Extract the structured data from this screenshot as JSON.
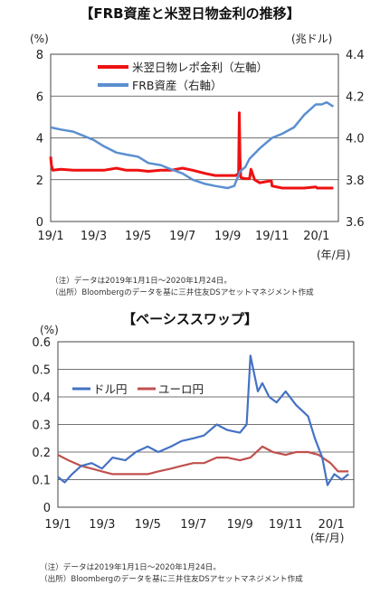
{
  "chart_data": [
    {
      "type": "line",
      "title": "【FRB資産と米翌日物金利の推移】",
      "left_unit": "(%)",
      "right_unit": "(兆ドル)",
      "x_unit": "(年/月)",
      "x_ticks": [
        "19/1",
        "19/3",
        "19/5",
        "19/7",
        "19/9",
        "19/11",
        "20/1"
      ],
      "y_left_ticks": [
        "0",
        "2",
        "4",
        "6",
        "8"
      ],
      "y_left_lim": [
        0,
        8
      ],
      "y_right_ticks": [
        "3.6",
        "3.8",
        "4.0",
        "4.2",
        "4.4"
      ],
      "y_right_lim": [
        3.6,
        4.4
      ],
      "grid": true,
      "legend_position": "top-left",
      "series": [
        {
          "name": "米翌日物レポ金利（左軸）",
          "axis": "left",
          "color": "#ee1111",
          "x": [
            "2019-01-01",
            "2019-01-02",
            "2019-01-04",
            "2019-01-15",
            "2019-02-01",
            "2019-02-15",
            "2019-03-01",
            "2019-03-15",
            "2019-04-01",
            "2019-04-15",
            "2019-05-01",
            "2019-05-15",
            "2019-06-01",
            "2019-06-15",
            "2019-07-01",
            "2019-07-15",
            "2019-08-01",
            "2019-08-15",
            "2019-09-01",
            "2019-09-12",
            "2019-09-16",
            "2019-09-17",
            "2019-09-18",
            "2019-09-19",
            "2019-09-25",
            "2019-10-01",
            "2019-10-03",
            "2019-10-08",
            "2019-10-15",
            "2019-10-31",
            "2019-11-01",
            "2019-11-15",
            "2019-12-01",
            "2019-12-15",
            "2019-12-31",
            "2020-01-02",
            "2020-01-15",
            "2020-01-24"
          ],
          "values": [
            3.1,
            2.7,
            2.45,
            2.5,
            2.45,
            2.45,
            2.45,
            2.45,
            2.55,
            2.45,
            2.45,
            2.4,
            2.45,
            2.45,
            2.55,
            2.45,
            2.3,
            2.2,
            2.2,
            2.2,
            2.3,
            5.2,
            3.0,
            2.1,
            2.05,
            2.05,
            2.5,
            2.0,
            1.85,
            1.95,
            1.7,
            1.6,
            1.6,
            1.6,
            1.65,
            1.6,
            1.6,
            1.6
          ]
        },
        {
          "name": "FRB資産（右軸）",
          "axis": "right",
          "color": "#5b8fd0",
          "x": [
            "2019-01-01",
            "2019-01-15",
            "2019-02-01",
            "2019-02-15",
            "2019-03-01",
            "2019-03-15",
            "2019-04-01",
            "2019-04-15",
            "2019-05-01",
            "2019-05-15",
            "2019-06-01",
            "2019-06-15",
            "2019-07-01",
            "2019-07-15",
            "2019-08-01",
            "2019-08-15",
            "2019-09-01",
            "2019-09-10",
            "2019-09-18",
            "2019-09-25",
            "2019-10-01",
            "2019-10-15",
            "2019-11-01",
            "2019-11-15",
            "2019-12-01",
            "2019-12-15",
            "2019-12-31",
            "2020-01-08",
            "2020-01-15",
            "2020-01-24"
          ],
          "values": [
            4.05,
            4.04,
            4.03,
            4.01,
            3.99,
            3.96,
            3.93,
            3.92,
            3.91,
            3.88,
            3.87,
            3.85,
            3.83,
            3.8,
            3.78,
            3.77,
            3.76,
            3.77,
            3.84,
            3.86,
            3.9,
            3.95,
            4.0,
            4.02,
            4.05,
            4.11,
            4.16,
            4.16,
            4.17,
            4.15
          ]
        }
      ],
      "notes": [
        "（注）データは2019年1月1日～2020年1月24日。",
        "（出所）Bloombergのデータを基に三井住友DSアセットマネジメント作成"
      ]
    },
    {
      "type": "line",
      "title": "【ベーシススワップ】",
      "y_unit": "(%)",
      "x_unit": "(年/月)",
      "x_ticks": [
        "19/1",
        "19/3",
        "19/5",
        "19/7",
        "19/9",
        "19/11",
        "20/1"
      ],
      "y_ticks": [
        "0",
        "0.1",
        "0.2",
        "0.3",
        "0.4",
        "0.5",
        "0.6"
      ],
      "y_lim": [
        0,
        0.6
      ],
      "grid": true,
      "legend_position": "top-left",
      "series": [
        {
          "name": "ドル円",
          "color": "#4472c4",
          "x": [
            "2019-01-01",
            "2019-01-10",
            "2019-01-20",
            "2019-02-01",
            "2019-02-15",
            "2019-03-01",
            "2019-03-15",
            "2019-04-01",
            "2019-04-15",
            "2019-05-01",
            "2019-05-15",
            "2019-06-01",
            "2019-06-15",
            "2019-07-01",
            "2019-07-15",
            "2019-08-01",
            "2019-08-15",
            "2019-09-01",
            "2019-09-10",
            "2019-09-15",
            "2019-09-25",
            "2019-10-01",
            "2019-10-10",
            "2019-10-20",
            "2019-11-01",
            "2019-11-15",
            "2019-12-01",
            "2019-12-10",
            "2019-12-20",
            "2019-12-27",
            "2020-01-05",
            "2020-01-15",
            "2020-01-24"
          ],
          "values": [
            0.11,
            0.09,
            0.12,
            0.15,
            0.16,
            0.14,
            0.18,
            0.17,
            0.2,
            0.22,
            0.2,
            0.22,
            0.24,
            0.25,
            0.26,
            0.3,
            0.28,
            0.27,
            0.3,
            0.55,
            0.42,
            0.45,
            0.4,
            0.38,
            0.42,
            0.37,
            0.33,
            0.25,
            0.18,
            0.08,
            0.12,
            0.1,
            0.12
          ]
        },
        {
          "name": "ユーロ円",
          "color": "#c0504d",
          "x": [
            "2019-01-01",
            "2019-01-15",
            "2019-02-01",
            "2019-02-15",
            "2019-03-01",
            "2019-03-15",
            "2019-04-01",
            "2019-04-15",
            "2019-05-01",
            "2019-05-15",
            "2019-06-01",
            "2019-06-15",
            "2019-07-01",
            "2019-07-15",
            "2019-08-01",
            "2019-08-15",
            "2019-09-01",
            "2019-09-15",
            "2019-10-01",
            "2019-10-15",
            "2019-11-01",
            "2019-11-15",
            "2019-12-01",
            "2019-12-15",
            "2019-12-31",
            "2020-01-10",
            "2020-01-24"
          ],
          "values": [
            0.19,
            0.17,
            0.15,
            0.14,
            0.13,
            0.12,
            0.12,
            0.12,
            0.12,
            0.13,
            0.14,
            0.15,
            0.16,
            0.16,
            0.18,
            0.18,
            0.17,
            0.18,
            0.22,
            0.2,
            0.19,
            0.2,
            0.2,
            0.19,
            0.16,
            0.13,
            0.13
          ]
        }
      ],
      "notes": [
        "（注）データは2019年1月1日～2020年1月24日。",
        "（出所）Bloombergのデータを基に三井住友DSアセットマネジメント作成"
      ]
    }
  ]
}
